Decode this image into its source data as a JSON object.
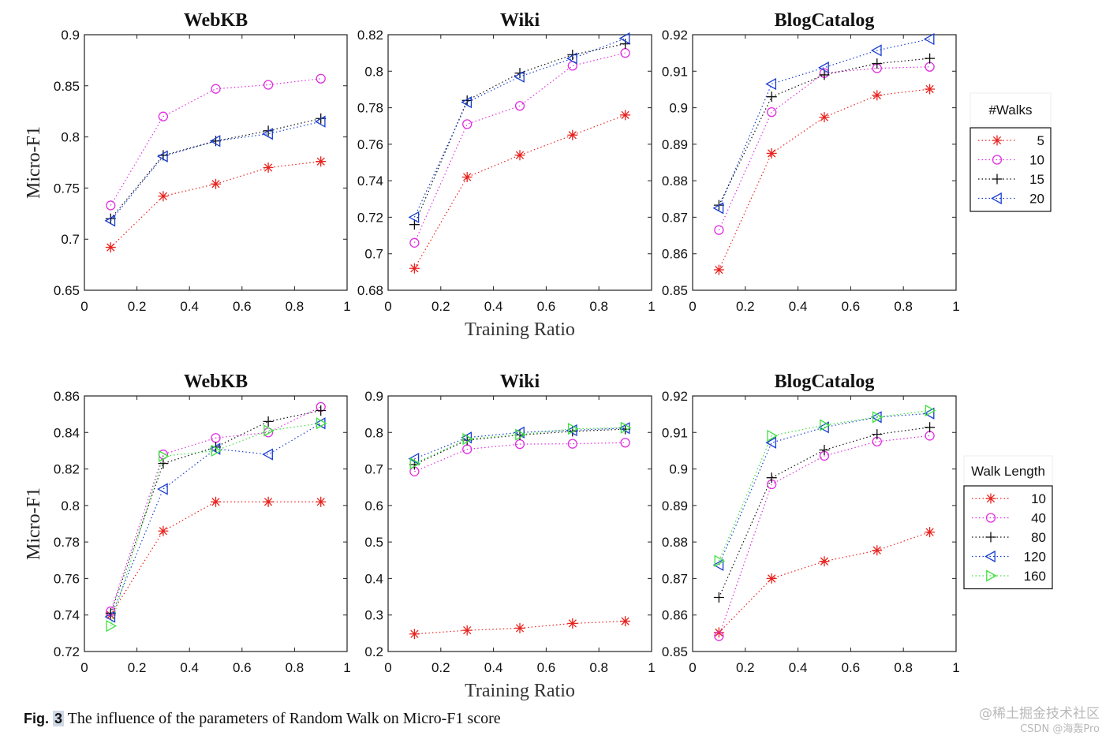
{
  "caption": {
    "label": "Fig.",
    "number": "3",
    "text": "The influence of the parameters of Random Walk on Micro-F1 score"
  },
  "watermark": {
    "line1": "@稀土掘金技术社区",
    "line2": "CSDN @海轰Pro"
  },
  "colors": {
    "red": "#e8231e",
    "magenta": "#e030e0",
    "black": "#111111",
    "blue": "#1a3fd0",
    "green": "#40e040"
  },
  "chart_data": [
    {
      "type": "line",
      "title": "WebKB",
      "xlabel": "",
      "ylabel": "Micro-F1",
      "xlim": [
        0,
        1
      ],
      "ylim": [
        0.65,
        0.9
      ],
      "xticks": [
        "0",
        "0.2",
        "0.4",
        "0.6",
        "0.8",
        "1"
      ],
      "yticks": [
        "0.65",
        "0.7",
        "0.75",
        "0.8",
        "0.85",
        "0.9"
      ],
      "x": [
        0.1,
        0.3,
        0.5,
        0.7,
        0.9
      ],
      "series": [
        {
          "name": "5",
          "marker": "asterisk",
          "color": "#e8231e",
          "values": [
            0.692,
            0.742,
            0.754,
            0.77,
            0.776
          ]
        },
        {
          "name": "10",
          "marker": "circle",
          "color": "#e030e0",
          "values": [
            0.733,
            0.82,
            0.847,
            0.851,
            0.857
          ]
        },
        {
          "name": "15",
          "marker": "plus",
          "color": "#111111",
          "values": [
            0.72,
            0.782,
            0.796,
            0.806,
            0.818
          ]
        },
        {
          "name": "20",
          "marker": "triangle-left",
          "color": "#1a3fd0",
          "values": [
            0.718,
            0.781,
            0.796,
            0.803,
            0.815
          ]
        }
      ]
    },
    {
      "type": "line",
      "title": "Wiki",
      "xlabel": "Training Ratio",
      "ylabel": "",
      "xlim": [
        0,
        1
      ],
      "ylim": [
        0.68,
        0.82
      ],
      "xticks": [
        "0",
        "0.2",
        "0.4",
        "0.6",
        "0.8",
        "1"
      ],
      "yticks": [
        "0.68",
        "0.7",
        "0.72",
        "0.74",
        "0.76",
        "0.78",
        "0.8",
        "0.82"
      ],
      "x": [
        0.1,
        0.3,
        0.5,
        0.7,
        0.9
      ],
      "series": [
        {
          "name": "5",
          "marker": "asterisk",
          "color": "#e8231e",
          "values": [
            0.692,
            0.742,
            0.754,
            0.765,
            0.776
          ]
        },
        {
          "name": "10",
          "marker": "circle",
          "color": "#e030e0",
          "values": [
            0.706,
            0.771,
            0.781,
            0.803,
            0.81
          ]
        },
        {
          "name": "15",
          "marker": "plus",
          "color": "#111111",
          "values": [
            0.716,
            0.784,
            0.799,
            0.809,
            0.815
          ]
        },
        {
          "name": "20",
          "marker": "triangle-left",
          "color": "#1a3fd0",
          "values": [
            0.72,
            0.783,
            0.797,
            0.807,
            0.818
          ]
        }
      ]
    },
    {
      "type": "line",
      "title": "BlogCatalog",
      "xlabel": "",
      "ylabel": "",
      "xlim": [
        0,
        1
      ],
      "ylim": [
        0.85,
        0.92
      ],
      "xticks": [
        "0",
        "0.2",
        "0.4",
        "0.6",
        "0.8",
        "1"
      ],
      "yticks": [
        "0.85",
        "0.86",
        "0.87",
        "0.88",
        "0.89",
        "0.9",
        "0.91",
        "0.92"
      ],
      "x": [
        0.1,
        0.3,
        0.5,
        0.7,
        0.9
      ],
      "legend": {
        "title": "#Walks",
        "position": "right"
      },
      "series": [
        {
          "name": "5",
          "marker": "asterisk",
          "color": "#e8231e",
          "values": [
            0.8556,
            0.8875,
            0.8974,
            0.9034,
            0.9051
          ]
        },
        {
          "name": "10",
          "marker": "circle",
          "color": "#e030e0",
          "values": [
            0.8665,
            0.8988,
            0.9095,
            0.9108,
            0.9112
          ]
        },
        {
          "name": "15",
          "marker": "plus",
          "color": "#111111",
          "values": [
            0.8733,
            0.903,
            0.909,
            0.9121,
            0.9135
          ]
        },
        {
          "name": "20",
          "marker": "triangle-left",
          "color": "#1a3fd0",
          "values": [
            0.8725,
            0.9065,
            0.911,
            0.9157,
            0.9188
          ]
        }
      ]
    },
    {
      "type": "line",
      "title": "WebKB",
      "xlabel": "",
      "ylabel": "Micro-F1",
      "xlim": [
        0,
        1
      ],
      "ylim": [
        0.72,
        0.86
      ],
      "xticks": [
        "0",
        "0.2",
        "0.4",
        "0.6",
        "0.8",
        "1"
      ],
      "yticks": [
        "0.72",
        "0.74",
        "0.76",
        "0.78",
        "0.8",
        "0.82",
        "0.84",
        "0.86"
      ],
      "x": [
        0.1,
        0.3,
        0.5,
        0.7,
        0.9
      ],
      "series": [
        {
          "name": "10",
          "marker": "asterisk",
          "color": "#e8231e",
          "values": [
            0.74,
            0.786,
            0.802,
            0.802,
            0.802
          ]
        },
        {
          "name": "40",
          "marker": "circle",
          "color": "#e030e0",
          "values": [
            0.742,
            0.828,
            0.837,
            0.84,
            0.854
          ]
        },
        {
          "name": "80",
          "marker": "plus",
          "color": "#111111",
          "values": [
            0.741,
            0.823,
            0.832,
            0.846,
            0.852
          ]
        },
        {
          "name": "120",
          "marker": "triangle-left",
          "color": "#1a3fd0",
          "values": [
            0.739,
            0.809,
            0.831,
            0.828,
            0.845
          ]
        },
        {
          "name": "160",
          "marker": "triangle-right",
          "color": "#40e040",
          "values": [
            0.734,
            0.827,
            0.83,
            0.841,
            0.845
          ]
        }
      ]
    },
    {
      "type": "line",
      "title": "Wiki",
      "xlabel": "Training Ratio",
      "ylabel": "",
      "xlim": [
        0,
        1
      ],
      "ylim": [
        0.2,
        0.9
      ],
      "xticks": [
        "0",
        "0.2",
        "0.4",
        "0.6",
        "0.8",
        "1"
      ],
      "yticks": [
        "0.2",
        "0.3",
        "0.4",
        "0.5",
        "0.6",
        "0.7",
        "0.8",
        "0.9"
      ],
      "x": [
        0.1,
        0.3,
        0.5,
        0.7,
        0.9
      ],
      "series": [
        {
          "name": "10",
          "marker": "asterisk",
          "color": "#e8231e",
          "values": [
            0.248,
            0.258,
            0.264,
            0.277,
            0.283
          ]
        },
        {
          "name": "40",
          "marker": "circle",
          "color": "#e030e0",
          "values": [
            0.693,
            0.754,
            0.768,
            0.769,
            0.772
          ]
        },
        {
          "name": "80",
          "marker": "plus",
          "color": "#111111",
          "values": [
            0.712,
            0.779,
            0.793,
            0.803,
            0.809
          ]
        },
        {
          "name": "120",
          "marker": "triangle-left",
          "color": "#1a3fd0",
          "values": [
            0.728,
            0.786,
            0.8,
            0.806,
            0.812
          ]
        },
        {
          "name": "160",
          "marker": "triangle-right",
          "color": "#40e040",
          "values": [
            0.715,
            0.782,
            0.794,
            0.81,
            0.813
          ]
        }
      ]
    },
    {
      "type": "line",
      "title": "BlogCatalog",
      "xlabel": "",
      "ylabel": "",
      "xlim": [
        0,
        1
      ],
      "ylim": [
        0.85,
        0.92
      ],
      "xticks": [
        "0",
        "0.2",
        "0.4",
        "0.6",
        "0.8",
        "1"
      ],
      "yticks": [
        "0.85",
        "0.86",
        "0.87",
        "0.88",
        "0.89",
        "0.9",
        "0.91",
        "0.92"
      ],
      "x": [
        0.1,
        0.3,
        0.5,
        0.7,
        0.9
      ],
      "legend": {
        "title": "Walk Length",
        "position": "right"
      },
      "series": [
        {
          "name": "10",
          "marker": "asterisk",
          "color": "#e8231e",
          "values": [
            0.8552,
            0.87,
            0.8747,
            0.8777,
            0.8827
          ]
        },
        {
          "name": "40",
          "marker": "circle",
          "color": "#e030e0",
          "values": [
            0.8542,
            0.8958,
            0.9036,
            0.9075,
            0.9091
          ]
        },
        {
          "name": "80",
          "marker": "plus",
          "color": "#111111",
          "values": [
            0.8648,
            0.8976,
            0.9052,
            0.9095,
            0.9114
          ]
        },
        {
          "name": "120",
          "marker": "triangle-left",
          "color": "#1a3fd0",
          "values": [
            0.8737,
            0.9072,
            0.9114,
            0.9142,
            0.9152
          ]
        },
        {
          "name": "160",
          "marker": "triangle-right",
          "color": "#40e040",
          "values": [
            0.8748,
            0.9091,
            0.912,
            0.9142,
            0.916
          ]
        }
      ]
    }
  ]
}
